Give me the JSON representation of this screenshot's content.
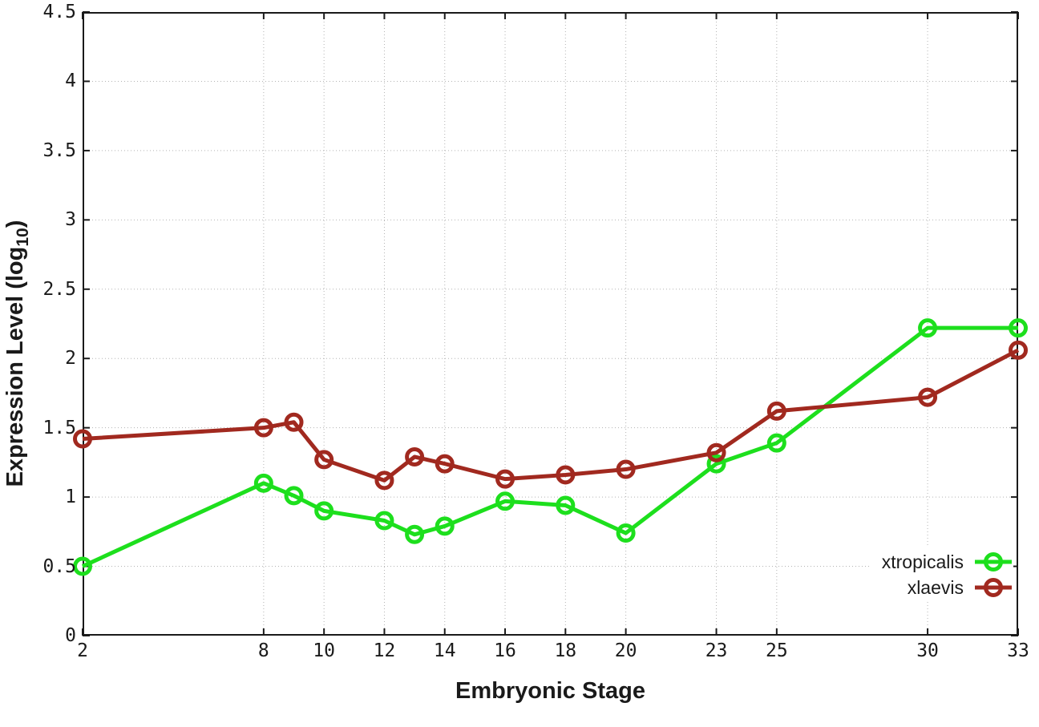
{
  "figure": {
    "ylabel_main": "Expression Level (log",
    "ylabel_sub": "10",
    "ylabel_close": ")"
  },
  "chart_data": {
    "type": "line",
    "title": "",
    "xlabel": "Embryonic Stage",
    "ylabel": "Expression Level (log10)",
    "xlim": [
      2,
      33
    ],
    "ylim": [
      0,
      4.5
    ],
    "grid": true,
    "legend_position": "inside-bottom-right",
    "x_ticks": [
      2,
      8,
      10,
      12,
      14,
      16,
      18,
      20,
      23,
      25,
      30,
      33
    ],
    "x_tick_labels": [
      "2",
      "8",
      "10",
      "12",
      "14",
      "16",
      "18",
      "20",
      "23",
      "25",
      "30",
      "33"
    ],
    "y_ticks": [
      0,
      0.5,
      1,
      1.5,
      2,
      2.5,
      3,
      3.5,
      4,
      4.5
    ],
    "y_tick_labels": [
      "0",
      "0.5",
      "1",
      "1.5",
      "2",
      "2.5",
      "3",
      "3.5",
      "4",
      "4.5"
    ],
    "x": [
      2,
      8,
      9,
      10,
      12,
      13,
      14,
      16,
      18,
      20,
      23,
      25,
      30,
      33
    ],
    "series": [
      {
        "name": "xtropicalis",
        "color": "#1ddf1d",
        "marker": "open-circle",
        "values": [
          0.5,
          1.1,
          1.01,
          0.9,
          0.83,
          0.73,
          0.79,
          0.97,
          0.94,
          0.74,
          1.24,
          1.39,
          2.22,
          2.22
        ]
      },
      {
        "name": "xlaevis",
        "color": "#a1291f",
        "marker": "open-circle",
        "values": [
          1.42,
          1.5,
          1.54,
          1.27,
          1.12,
          1.29,
          1.24,
          1.13,
          1.16,
          1.2,
          1.32,
          1.62,
          1.72,
          2.06
        ]
      }
    ]
  },
  "colors": {
    "axis": "#1a1a1a",
    "grid": "#b3b3b3",
    "text": "#1a1a1a",
    "background": "#ffffff"
  }
}
